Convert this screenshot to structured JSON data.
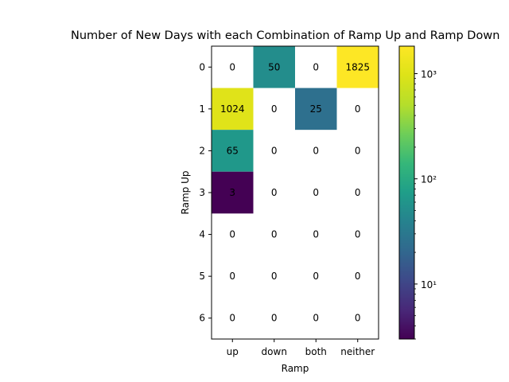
{
  "chart_data": {
    "type": "heatmap",
    "title": "Number of New Days with each Combination of Ramp Up and Ramp Down",
    "xlabel": "Ramp",
    "ylabel": "Ramp Up",
    "x_categories": [
      "up",
      "down",
      "both",
      "neither"
    ],
    "y_categories": [
      "0",
      "1",
      "2",
      "3",
      "4",
      "5",
      "6"
    ],
    "values": [
      [
        0,
        50,
        0,
        1825
      ],
      [
        1024,
        0,
        25,
        0
      ],
      [
        65,
        0,
        0,
        0
      ],
      [
        3,
        0,
        0,
        0
      ],
      [
        0,
        0,
        0,
        0
      ],
      [
        0,
        0,
        0,
        0
      ],
      [
        0,
        0,
        0,
        0
      ]
    ],
    "zero_cells_blank": true,
    "colorbar": {
      "scale": "log",
      "colormap": "viridis",
      "vmin": 3,
      "vmax": 1825,
      "tick_values": [
        10,
        100,
        1000
      ],
      "tick_labels": [
        "10¹",
        "10²",
        "10³"
      ]
    }
  }
}
